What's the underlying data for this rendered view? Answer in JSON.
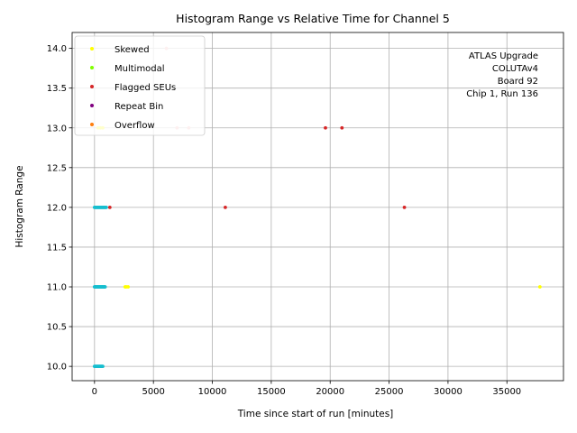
{
  "chart_data": {
    "type": "scatter",
    "title": "Histogram Range vs Relative Time for Channel 5",
    "xlabel": "Time since start of run [minutes]",
    "ylabel": "Histogram Range",
    "xlim": [
      -1900,
      39800
    ],
    "ylim": [
      9.82,
      14.2
    ],
    "xticks": [
      0,
      5000,
      10000,
      15000,
      20000,
      25000,
      30000,
      35000
    ],
    "yticks": [
      10.0,
      10.5,
      11.0,
      11.5,
      12.0,
      12.5,
      13.0,
      13.5,
      14.0
    ],
    "xtick_labels": [
      "0",
      "5000",
      "10000",
      "15000",
      "20000",
      "25000",
      "30000",
      "35000"
    ],
    "ytick_labels": [
      "10.0",
      "10.5",
      "11.0",
      "11.5",
      "12.0",
      "12.5",
      "13.0",
      "13.5",
      "14.0"
    ],
    "grid": true,
    "legend_position": "top-left",
    "annotation": [
      "ATLAS Upgrade",
      "COLUTAv4",
      "Board 92",
      "Chip 1, Run 136"
    ],
    "series": [
      {
        "name": "Normal",
        "color": "#17becf",
        "in_legend": false,
        "x": [
          0,
          50,
          100,
          150,
          200,
          250,
          300,
          350,
          400,
          450,
          500,
          550,
          600,
          650,
          700,
          750,
          800,
          850,
          900,
          950,
          1000,
          0,
          50,
          100,
          150,
          200,
          250,
          300,
          350,
          400,
          450,
          500,
          550,
          600,
          650,
          700,
          750,
          800,
          850,
          900,
          0,
          50,
          100,
          150,
          200,
          250,
          300,
          350,
          400,
          450,
          500,
          550,
          600,
          650,
          700
        ],
        "y": [
          12,
          12,
          12,
          12,
          12,
          12,
          12,
          12,
          12,
          12,
          12,
          12,
          12,
          12,
          12,
          12,
          12,
          12,
          12,
          12,
          12,
          11,
          11,
          11,
          11,
          11,
          11,
          11,
          11,
          11,
          11,
          11,
          11,
          11,
          11,
          11,
          11,
          11,
          11,
          11,
          10,
          10,
          10,
          10,
          10,
          10,
          10,
          10,
          10,
          10,
          10,
          10,
          10,
          10,
          10
        ]
      },
      {
        "name": "Skewed",
        "color": "#ffff00",
        "in_legend": true,
        "x": [
          300,
          500,
          700,
          2600,
          2700,
          2850,
          37800
        ],
        "y": [
          13,
          13,
          13,
          11,
          11,
          11,
          11
        ]
      },
      {
        "name": "Multimodal",
        "color": "#7fff00",
        "in_legend": true,
        "x": [],
        "y": []
      },
      {
        "name": "Flagged SEUs",
        "color": "#d62728",
        "in_legend": true,
        "x": [
          1300,
          11100,
          19600,
          21000,
          26300
        ],
        "y": [
          12,
          12,
          13,
          13,
          12
        ]
      },
      {
        "name": "Repeat Bin",
        "color": "#800080",
        "in_legend": true,
        "x": [],
        "y": []
      },
      {
        "name": "Overflow",
        "color": "#ff7f0e",
        "in_legend": true,
        "x": [],
        "y": []
      },
      {
        "name": "Faint",
        "color": "#f4b6b6",
        "in_legend": false,
        "x": [
          6100,
          7000,
          8000
        ],
        "y": [
          14,
          13,
          13
        ]
      }
    ]
  }
}
